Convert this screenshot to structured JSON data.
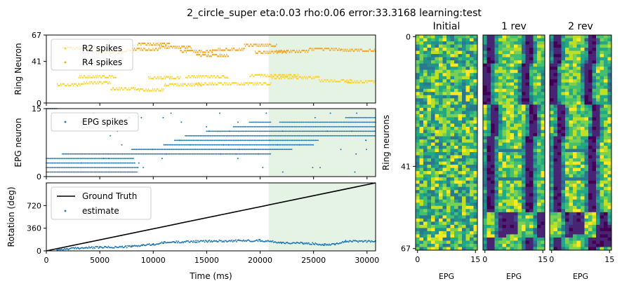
{
  "title": "2_circle_super eta:0.03 rho:0.06 error:33.3168 learning:test",
  "chart_data": [
    {
      "type": "scatter",
      "panel": "ring-spikes",
      "ylabel": "Ring Neuron",
      "xlim": [
        0,
        30800
      ],
      "ylim": [
        0,
        67
      ],
      "yticks": [
        0,
        41,
        67
      ],
      "shaded_region": [
        20800,
        30800
      ],
      "legend": "top-left",
      "series": [
        {
          "name": "R2 spikes",
          "color": "#ffd21f",
          "segments": [
            [
              1000,
              3500,
              18
            ],
            [
              3500,
              6000,
              20
            ],
            [
              6000,
              8500,
              14
            ],
            [
              8500,
              11000,
              13
            ],
            [
              11000,
              14500,
              18
            ],
            [
              13000,
              17000,
              26
            ],
            [
              14000,
              17500,
              19
            ],
            [
              17500,
              21000,
              19
            ],
            [
              19000,
              23500,
              27
            ],
            [
              21000,
              25500,
              25
            ],
            [
              25500,
              28500,
              22
            ],
            [
              28000,
              30800,
              21
            ],
            [
              3000,
              6500,
              26
            ],
            [
              9500,
              12500,
              25
            ]
          ]
        },
        {
          "name": "R4 spikes",
          "color": "#f5a418",
          "segments": [
            [
              1500,
              4500,
              54
            ],
            [
              4500,
              7500,
              50
            ],
            [
              7500,
              10500,
              53
            ],
            [
              10500,
              13500,
              55
            ],
            [
              12500,
              15500,
              51
            ],
            [
              15500,
              18500,
              53
            ],
            [
              18500,
              21500,
              57
            ],
            [
              21500,
              24500,
              51
            ],
            [
              24500,
              27500,
              53
            ],
            [
              27500,
              30800,
              52
            ],
            [
              14000,
              17000,
              47
            ],
            [
              8500,
              11500,
              58
            ],
            [
              19500,
              22500,
              50
            ]
          ]
        }
      ]
    },
    {
      "type": "scatter",
      "panel": "epg-spikes",
      "ylabel": "EPG neuron",
      "xlim": [
        0,
        30800
      ],
      "ylim": [
        0,
        15
      ],
      "yticks": [
        0,
        15
      ],
      "shaded_region": [
        20800,
        30800
      ],
      "legend": "top-left",
      "series": [
        {
          "name": "EPG spikes",
          "color": "#1f77b4",
          "bands": [
            [
              0,
              8500,
              1
            ],
            [
              0,
              8500,
              2
            ],
            [
              0,
              8200,
              3
            ],
            [
              0,
              8200,
              4
            ],
            [
              1500,
              21000,
              5
            ],
            [
              8000,
              23000,
              6
            ],
            [
              11000,
              25000,
              7
            ],
            [
              12000,
              25500,
              8
            ],
            [
              13000,
              30800,
              9
            ],
            [
              15000,
              30800,
              10
            ],
            [
              17500,
              30800,
              11
            ],
            [
              19000,
              21000,
              12
            ],
            [
              22000,
              30800,
              12
            ],
            [
              28000,
              30800,
              13
            ],
            [
              0,
              1000,
              15
            ]
          ]
        }
      ]
    },
    {
      "type": "line",
      "panel": "rotation",
      "ylabel": "Rotation (deg)",
      "xlabel": "Time (ms)",
      "xlim": [
        0,
        30800
      ],
      "ylim": [
        0,
        1080
      ],
      "xticks": [
        0,
        5000,
        10000,
        15000,
        20000,
        25000,
        30000
      ],
      "yticks": [
        0,
        360,
        720
      ],
      "shaded_region": [
        20800,
        30800
      ],
      "legend": "top-left",
      "series": [
        {
          "name": "Ground Truth",
          "color": "#000000",
          "x": [
            0,
            30800
          ],
          "y": [
            0,
            1080
          ]
        },
        {
          "name": "estimate",
          "color": "#1f77b4",
          "x": [
            1000,
            2000,
            3000,
            5000,
            7000,
            8000,
            9000,
            10000,
            11000,
            12000,
            14000,
            16000,
            18000,
            20000,
            21000,
            22000,
            24000,
            25000,
            26000,
            27000,
            28000,
            30800
          ],
          "y": [
            20,
            30,
            45,
            55,
            60,
            70,
            90,
            100,
            130,
            140,
            150,
            155,
            160,
            165,
            150,
            130,
            120,
            115,
            100,
            110,
            150,
            155
          ]
        }
      ]
    },
    {
      "type": "heatmap",
      "panel": "weights-initial",
      "title": "Initial",
      "xlabel": "EPG",
      "ylabel": "Ring neurons",
      "rows": 68,
      "cols": 16,
      "xticks": [
        0,
        15
      ],
      "yticks": [
        0,
        41,
        67
      ],
      "colormap": "viridis"
    },
    {
      "type": "heatmap",
      "panel": "weights-1rev",
      "title": "1 rev",
      "xlabel": "EPG",
      "rows": 68,
      "cols": 16,
      "xticks": [
        0,
        15
      ],
      "colormap": "viridis"
    },
    {
      "type": "heatmap",
      "panel": "weights-2rev",
      "title": "2 rev",
      "xlabel": "EPG",
      "rows": 68,
      "cols": 16,
      "xticks": [
        0,
        15
      ],
      "colormap": "viridis"
    }
  ]
}
